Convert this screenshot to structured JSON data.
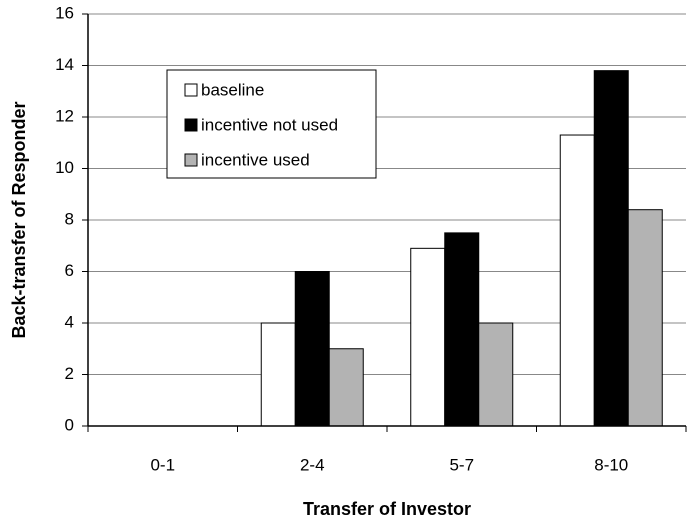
{
  "chart_data": {
    "type": "bar",
    "x_label": "Transfer of Investor",
    "y_label": "Back-transfer of Responder",
    "categories": [
      "0-1",
      "2-4",
      "5-7",
      "8-10"
    ],
    "series": [
      {
        "name": "baseline",
        "color": "#ffffff",
        "values": [
          0,
          4,
          6.9,
          11.3
        ]
      },
      {
        "name": "incentive not used",
        "color": "#000000",
        "values": [
          0,
          6,
          7.5,
          13.8
        ]
      },
      {
        "name": "incentive used",
        "color": "#b3b3b3",
        "values": [
          0,
          3,
          4,
          8.4
        ]
      }
    ],
    "ylim": [
      0,
      16
    ],
    "yticks": [
      0,
      2,
      4,
      6,
      8,
      10,
      12,
      14,
      16
    ],
    "grid": true,
    "legend": "upper left"
  }
}
